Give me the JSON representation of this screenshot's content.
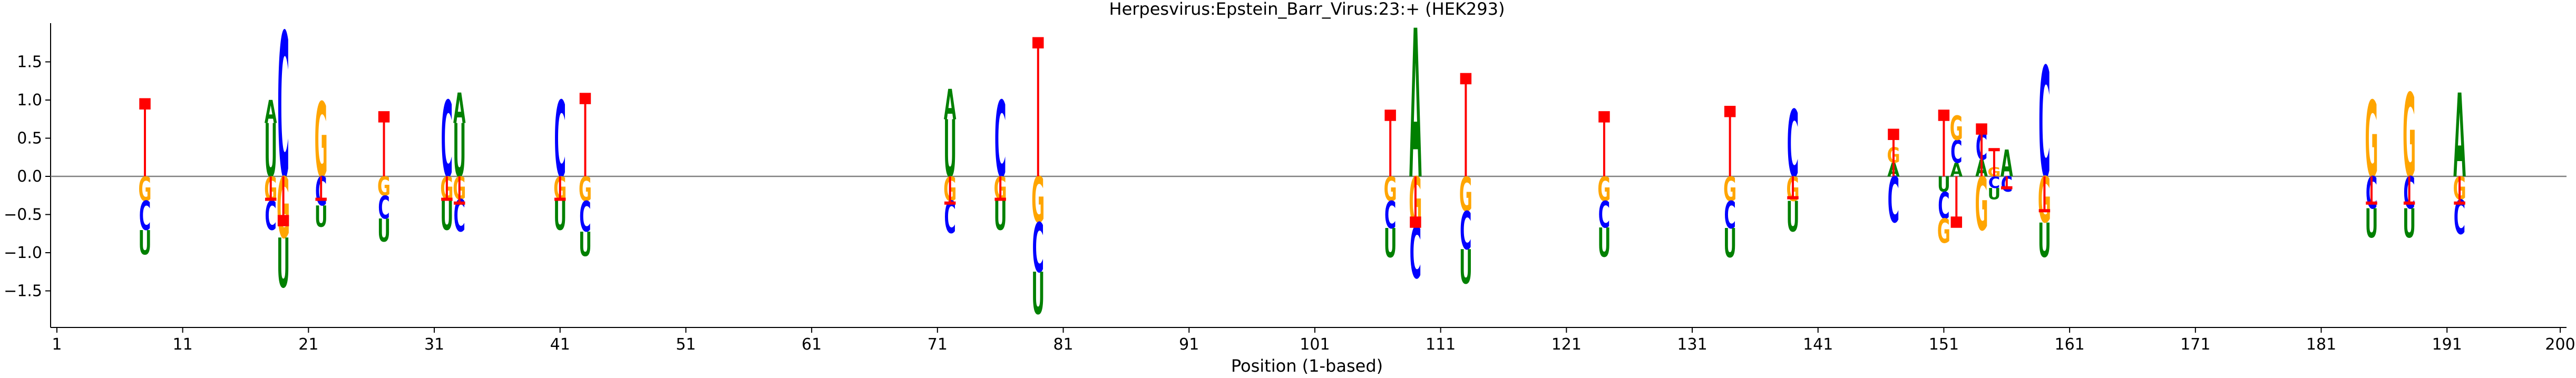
{
  "chart_data": {
    "type": "sequence-logo",
    "title": "Herpesvirus:Epstein_Barr_Virus:23:+  (HEK293)",
    "xlabel": "Position (1-based)",
    "ylabel": "",
    "xlim": [
      0.5,
      200.5
    ],
    "ylim": [
      -1.95,
      1.95
    ],
    "x_ticks": [
      1,
      11,
      21,
      31,
      41,
      51,
      61,
      71,
      81,
      91,
      101,
      111,
      121,
      131,
      141,
      151,
      161,
      171,
      181,
      191,
      200
    ],
    "y_ticks": [
      -1.5,
      -1.0,
      -0.5,
      0.0,
      0.5,
      1.0,
      1.5
    ],
    "y_tick_labels": [
      "−1.5",
      "−1.0",
      "−0.5",
      "0.0",
      "0.5",
      "1.0",
      "1.5"
    ],
    "colors": {
      "A": "#008000",
      "C": "#0000ff",
      "G": "#ffa500",
      "U": "#008000",
      "T": "#ff0000",
      "gap": "#ff0000",
      "axis": "#000000",
      "zero_line": "#808080"
    },
    "columns": [
      {
        "pos": 8,
        "pos_stack": [],
        "neg_stack": [
          [
            "G",
            0.32
          ],
          [
            "C",
            0.38
          ],
          [
            "U",
            0.32
          ]
        ],
        "gap": 0.95
      },
      {
        "pos": 18,
        "pos_stack": [
          [
            "U",
            0.7
          ],
          [
            "A",
            0.3
          ]
        ],
        "neg_stack": [
          [
            "G",
            0.32
          ],
          [
            "C",
            0.38
          ]
        ],
        "gap": -0.3
      },
      {
        "pos": 19,
        "pos_stack": [
          [
            "C",
            1.9
          ]
        ],
        "neg_stack": [
          [
            "G",
            0.8
          ],
          [
            "U",
            0.65
          ]
        ],
        "gap": -0.58
      },
      {
        "pos": 22,
        "pos_stack": [
          [
            "G",
            0.98
          ]
        ],
        "neg_stack": [
          [
            "C",
            0.38
          ],
          [
            "U",
            0.28
          ]
        ],
        "gap": -0.3
      },
      {
        "pos": 27,
        "pos_stack": [],
        "neg_stack": [
          [
            "G",
            0.25
          ],
          [
            "C",
            0.3
          ],
          [
            "U",
            0.3
          ]
        ],
        "gap": 0.78
      },
      {
        "pos": 32,
        "pos_stack": [
          [
            "C",
            1.0
          ]
        ],
        "neg_stack": [
          [
            "G",
            0.3
          ],
          [
            "U",
            0.4
          ]
        ],
        "gap": -0.3
      },
      {
        "pos": 33,
        "pos_stack": [
          [
            "U",
            0.7
          ],
          [
            "A",
            0.4
          ]
        ],
        "neg_stack": [
          [
            "G",
            0.3
          ],
          [
            "C",
            0.42
          ]
        ],
        "gap": -0.35
      },
      {
        "pos": 41,
        "pos_stack": [
          [
            "C",
            1.0
          ]
        ],
        "neg_stack": [
          [
            "G",
            0.3
          ],
          [
            "U",
            0.4
          ]
        ],
        "gap": -0.3
      },
      {
        "pos": 43,
        "pos_stack": [],
        "neg_stack": [
          [
            "G",
            0.32
          ],
          [
            "C",
            0.4
          ],
          [
            "U",
            0.32
          ]
        ],
        "gap": 1.02
      },
      {
        "pos": 72,
        "pos_stack": [
          [
            "U",
            0.75
          ],
          [
            "A",
            0.4
          ]
        ],
        "neg_stack": [
          [
            "G",
            0.32
          ],
          [
            "C",
            0.42
          ]
        ],
        "gap": -0.35
      },
      {
        "pos": 76,
        "pos_stack": [
          [
            "C",
            1.0
          ]
        ],
        "neg_stack": [
          [
            "G",
            0.3
          ],
          [
            "U",
            0.4
          ]
        ],
        "gap": -0.3
      },
      {
        "pos": 79,
        "pos_stack": [],
        "neg_stack": [
          [
            "G",
            0.6
          ],
          [
            "C",
            0.65
          ],
          [
            "U",
            0.55
          ]
        ],
        "gap": 1.75
      },
      {
        "pos": 107,
        "pos_stack": [],
        "neg_stack": [
          [
            "G",
            0.32
          ],
          [
            "C",
            0.36
          ],
          [
            "U",
            0.38
          ]
        ],
        "gap": 0.8
      },
      {
        "pos": 109,
        "pos_stack": [
          [
            "A",
            1.95
          ]
        ],
        "neg_stack": [
          [
            "G",
            0.65
          ],
          [
            "C",
            0.68
          ]
        ],
        "gap": -0.6
      },
      {
        "pos": 113,
        "pos_stack": [],
        "neg_stack": [
          [
            "G",
            0.45
          ],
          [
            "C",
            0.5
          ],
          [
            "U",
            0.45
          ]
        ],
        "gap": 1.28
      },
      {
        "pos": 124,
        "pos_stack": [],
        "neg_stack": [
          [
            "G",
            0.32
          ],
          [
            "C",
            0.35
          ],
          [
            "U",
            0.38
          ]
        ],
        "gap": 0.78
      },
      {
        "pos": 134,
        "pos_stack": [],
        "neg_stack": [
          [
            "G",
            0.32
          ],
          [
            "C",
            0.36
          ],
          [
            "U",
            0.38
          ]
        ],
        "gap": 0.85
      },
      {
        "pos": 139,
        "pos_stack": [
          [
            "C",
            0.88
          ]
        ],
        "neg_stack": [
          [
            "G",
            0.32
          ],
          [
            "U",
            0.4
          ]
        ],
        "gap": -0.28
      },
      {
        "pos": 147,
        "pos_stack": [
          [
            "A",
            0.18
          ],
          [
            "G",
            0.2
          ]
        ],
        "neg_stack": [
          [
            "C",
            0.6
          ]
        ],
        "gap": 0.55
      },
      {
        "pos": 151,
        "pos_stack": [],
        "neg_stack": [
          [
            "U",
            0.2
          ],
          [
            "C",
            0.35
          ],
          [
            "G",
            0.32
          ]
        ],
        "gap": 0.8
      },
      {
        "pos": 152,
        "pos_stack": [
          [
            "A",
            0.18
          ],
          [
            "C",
            0.3
          ],
          [
            "G",
            0.32
          ]
        ],
        "neg_stack": [],
        "gap": -0.6
      },
      {
        "pos": 154,
        "pos_stack": [
          [
            "A",
            0.22
          ],
          [
            "C",
            0.35
          ]
        ],
        "neg_stack": [
          [
            "G",
            0.7
          ]
        ],
        "gap": 0.62
      },
      {
        "pos": 155,
        "pos_stack": [
          [
            "G",
            0.12
          ]
        ],
        "neg_stack": [
          [
            "C",
            0.15
          ],
          [
            "U",
            0.15
          ]
        ],
        "gap": 0.35
      },
      {
        "pos": 156,
        "pos_stack": [
          [
            "A",
            0.35
          ]
        ],
        "neg_stack": [
          [
            "C",
            0.2
          ]
        ],
        "gap": -0.15
      },
      {
        "pos": 159,
        "pos_stack": [
          [
            "C",
            1.45
          ]
        ],
        "neg_stack": [
          [
            "G",
            0.6
          ],
          [
            "U",
            0.45
          ]
        ],
        "gap": -0.45
      },
      {
        "pos": 185,
        "pos_stack": [
          [
            "G",
            1.0
          ]
        ],
        "neg_stack": [
          [
            "C",
            0.42
          ],
          [
            "U",
            0.38
          ]
        ],
        "gap": -0.35
      },
      {
        "pos": 188,
        "pos_stack": [
          [
            "G",
            1.1
          ]
        ],
        "neg_stack": [
          [
            "C",
            0.42
          ],
          [
            "U",
            0.38
          ]
        ],
        "gap": -0.35
      },
      {
        "pos": 192,
        "pos_stack": [
          [
            "A",
            1.1
          ]
        ],
        "neg_stack": [
          [
            "G",
            0.3
          ],
          [
            "C",
            0.45
          ]
        ],
        "gap": -0.35
      }
    ]
  }
}
